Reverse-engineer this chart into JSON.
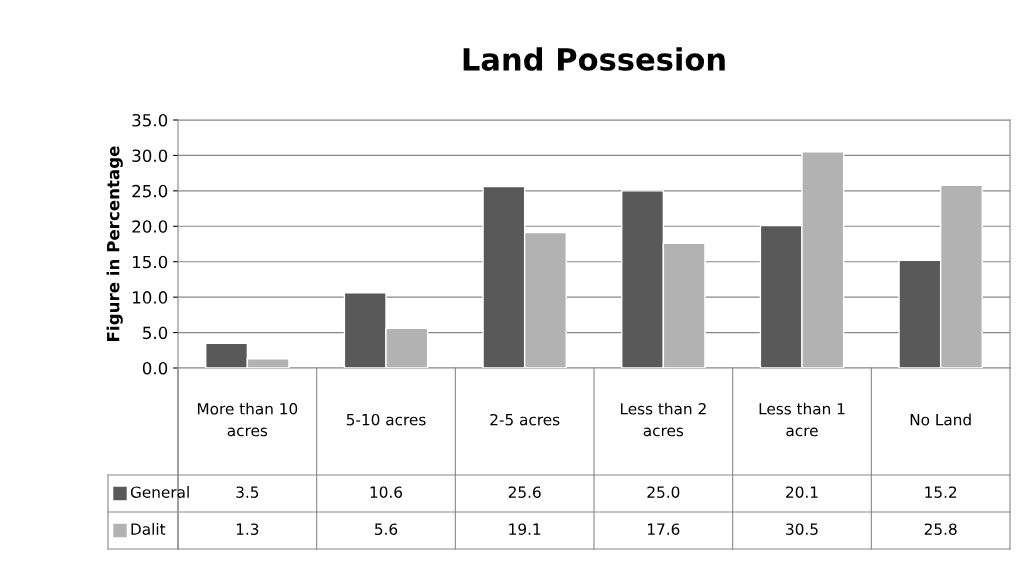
{
  "chart_data": {
    "type": "bar",
    "title": "Land Possesion",
    "ylabel": "Figure in Percentage",
    "categories": [
      "More than 10 acres",
      "5-10 acres",
      "2-5 acres",
      "Less than 2 acres",
      "Less than 1 acre",
      "No Land"
    ],
    "series": [
      {
        "name": "General",
        "color": "#595959",
        "values": [
          3.5,
          10.6,
          25.6,
          25.0,
          20.1,
          15.2
        ],
        "value_labels": [
          "3.5",
          "10.6",
          "25.6",
          "25.0",
          "20.1",
          "15.2"
        ]
      },
      {
        "name": "Dalit",
        "color": "#b2b2b2",
        "values": [
          1.3,
          5.6,
          19.1,
          17.6,
          30.5,
          25.8
        ],
        "value_labels": [
          "1.3",
          "5.6",
          "19.1",
          "17.6",
          "30.5",
          "25.8"
        ]
      }
    ],
    "ylim": [
      0,
      35
    ],
    "yticks": [
      {
        "value": 0,
        "label": "0.0"
      },
      {
        "value": 5,
        "label": "5.0"
      },
      {
        "value": 10,
        "label": "10.0"
      },
      {
        "value": 15,
        "label": "15.0"
      },
      {
        "value": 20,
        "label": "20.0"
      },
      {
        "value": 25,
        "label": "25.0"
      },
      {
        "value": 30,
        "label": "30.0"
      },
      {
        "value": 35,
        "label": "35.0"
      }
    ],
    "grid": "y",
    "legend": "bottom"
  }
}
